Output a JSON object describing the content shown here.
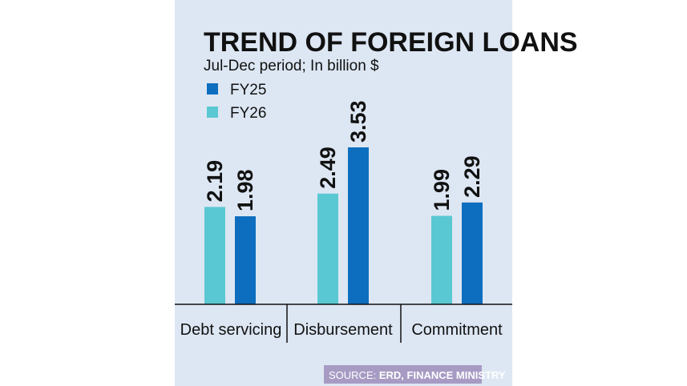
{
  "colors": {
    "background": "#dde7f3",
    "FY25": "#0d6ebf",
    "FY26": "#5ac8d2",
    "source_bg": "#a79bc4",
    "text": "#111111"
  },
  "source": {
    "prefix": "SOURCE: ",
    "name": "ERD, FINANCE MINISTRY"
  },
  "chart_data": {
    "type": "bar",
    "title": "TREND OF FOREIGN LOANS",
    "subtitle": "Jul-Dec period; In billion $",
    "categories": [
      "Debt servicing",
      "Disbursement",
      "Commitment"
    ],
    "series": [
      {
        "name": "FY26",
        "values": [
          2.19,
          2.49,
          1.99
        ]
      },
      {
        "name": "FY25",
        "values": [
          1.98,
          3.53,
          2.29
        ]
      }
    ],
    "legend": {
      "placement": "top-left",
      "order": [
        "FY25",
        "FY26"
      ]
    },
    "ylim": [
      0,
      3.53
    ],
    "grid": false,
    "xlabel": "",
    "ylabel": ""
  }
}
